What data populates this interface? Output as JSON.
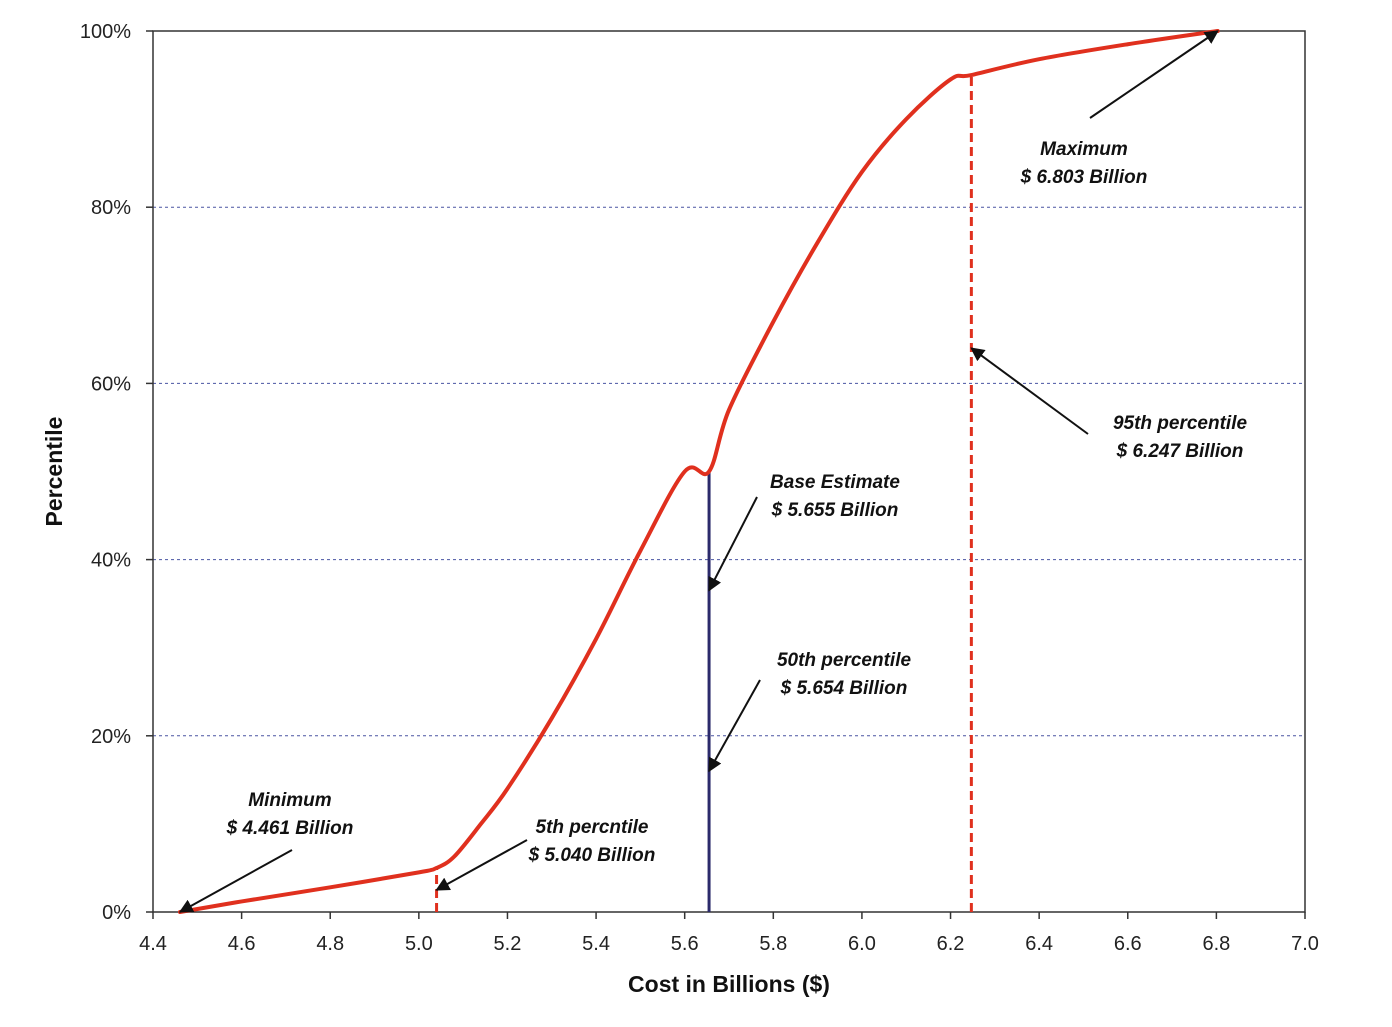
{
  "chart_data": {
    "type": "line",
    "xlabel": "Cost in Billions ($)",
    "ylabel": "Percentile",
    "xlim": [
      4.4,
      7.0
    ],
    "ylim": [
      0,
      100
    ],
    "x_ticks": [
      "4.4",
      "4.6",
      "4.8",
      "5.0",
      "5.2",
      "5.4",
      "5.6",
      "5.8",
      "6.0",
      "6.2",
      "6.4",
      "6.6",
      "6.8",
      "7.0"
    ],
    "y_ticks": [
      "0%",
      "20%",
      "40%",
      "60%",
      "80%",
      "100%"
    ],
    "y_tick_values": [
      0,
      20,
      40,
      60,
      80,
      100
    ],
    "grid": "horizontal-dotted",
    "colors": {
      "curve": "#e0301e",
      "base_line": "#2b2a6b",
      "dashed": "#e0301e",
      "grid": "#4a55a2",
      "arrow": "#111111"
    },
    "series": [
      {
        "x": [
          4.461,
          4.6,
          4.8,
          5.0,
          5.04,
          5.08,
          5.14,
          5.2,
          5.3,
          5.4,
          5.5,
          5.6,
          5.655,
          5.7,
          5.8,
          5.9,
          6.0,
          6.1,
          6.2,
          6.247,
          6.4,
          6.6,
          6.803
        ],
        "y": [
          0,
          1.2,
          2.8,
          4.5,
          5.0,
          6.3,
          10,
          14,
          22,
          31,
          41,
          50,
          50,
          57,
          67,
          76,
          84,
          90,
          94.5,
          95,
          96.8,
          98.5,
          100
        ]
      }
    ],
    "markers": [
      {
        "kind": "dashed",
        "x": 5.04,
        "y": 5
      },
      {
        "kind": "solid",
        "x": 5.655,
        "y": 50
      },
      {
        "kind": "dashed",
        "x": 6.247,
        "y": 95
      }
    ],
    "annotations": [
      {
        "id": "minimum",
        "lines": [
          "Minimum",
          "$ 4.461 Billion"
        ],
        "point": [
          4.461,
          0
        ]
      },
      {
        "id": "p5",
        "lines": [
          "5th percntile",
          "$ 5.040 Billion"
        ],
        "point": [
          5.04,
          2.5
        ]
      },
      {
        "id": "base",
        "lines": [
          "Base Estimate",
          "$ 5.655 Billion"
        ],
        "point": [
          5.655,
          36.5
        ]
      },
      {
        "id": "p50",
        "lines": [
          "50th percentile",
          "$ 5.654 Billion"
        ],
        "point": [
          5.655,
          16
        ]
      },
      {
        "id": "p95",
        "lines": [
          "95th percentile",
          "$ 6.247 Billion"
        ],
        "point": [
          6.247,
          64
        ]
      },
      {
        "id": "maximum",
        "lines": [
          "Maximum",
          "$ 6.803 Billion"
        ],
        "point": [
          6.803,
          100
        ]
      }
    ]
  }
}
